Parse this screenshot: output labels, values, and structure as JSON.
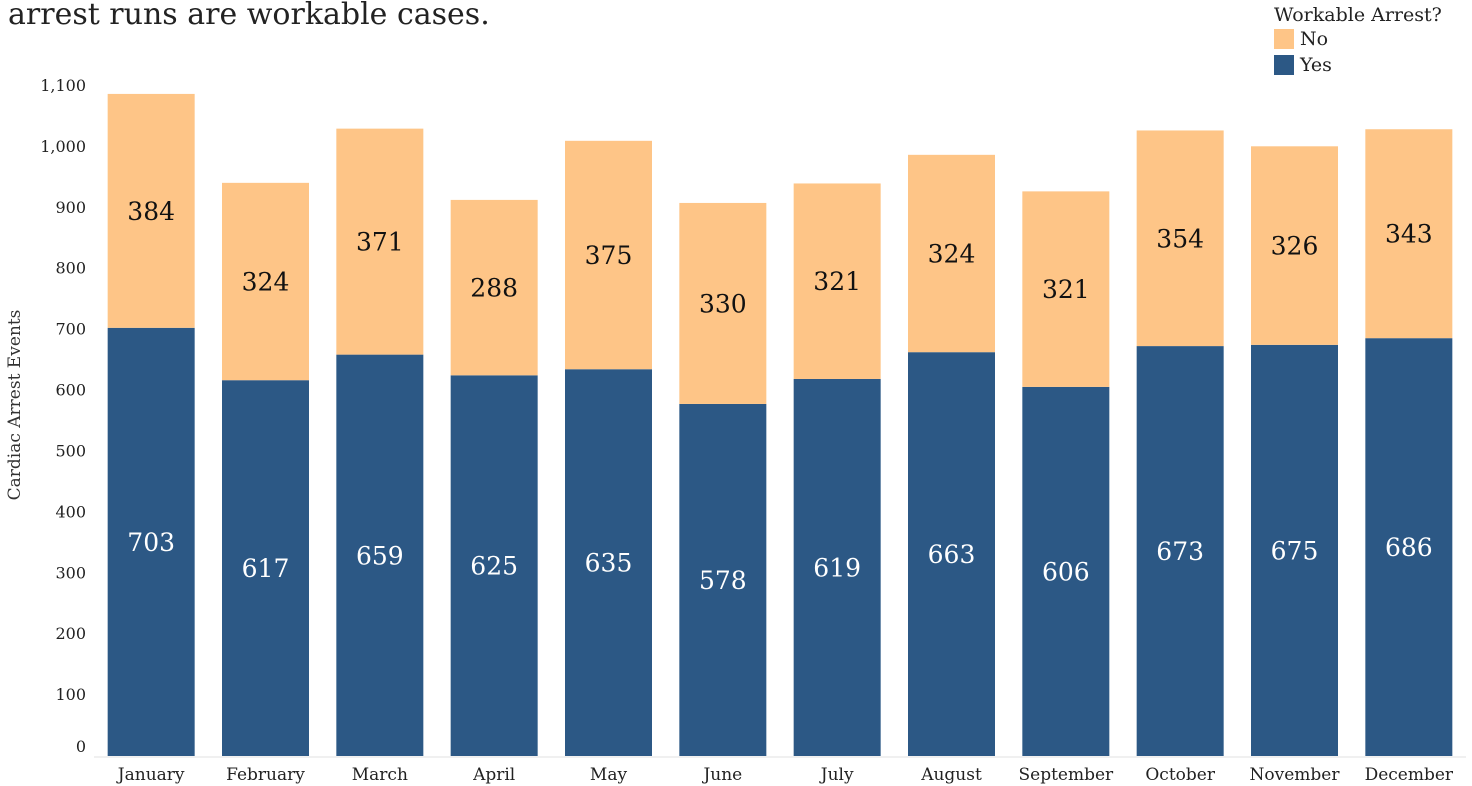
{
  "title": "arrest runs are workable cases.",
  "legend": {
    "title": "Workable Arrest?",
    "items": [
      {
        "label": "No",
        "color": "#FEC587"
      },
      {
        "label": "Yes",
        "color": "#2C5885"
      }
    ]
  },
  "chart_data": {
    "type": "bar",
    "stacked": true,
    "categories": [
      "January",
      "February",
      "March",
      "April",
      "May",
      "June",
      "July",
      "August",
      "September",
      "October",
      "November",
      "December"
    ],
    "series": [
      {
        "name": "Yes",
        "color": "#2C5885",
        "values": [
          703,
          617,
          659,
          625,
          635,
          578,
          619,
          663,
          606,
          673,
          675,
          686
        ]
      },
      {
        "name": "No",
        "color": "#FEC587",
        "values": [
          384,
          324,
          371,
          288,
          375,
          330,
          321,
          324,
          321,
          354,
          326,
          343
        ]
      }
    ],
    "ylabel": "Cardiac Arrest Events",
    "xlabel": "",
    "ylim": [
      0,
      1100
    ],
    "yticks": [
      "0",
      "100",
      "200",
      "300",
      "400",
      "500",
      "600",
      "700",
      "800",
      "900",
      "1,000",
      "1,100"
    ],
    "grid": false,
    "legend_position": "top-right"
  }
}
